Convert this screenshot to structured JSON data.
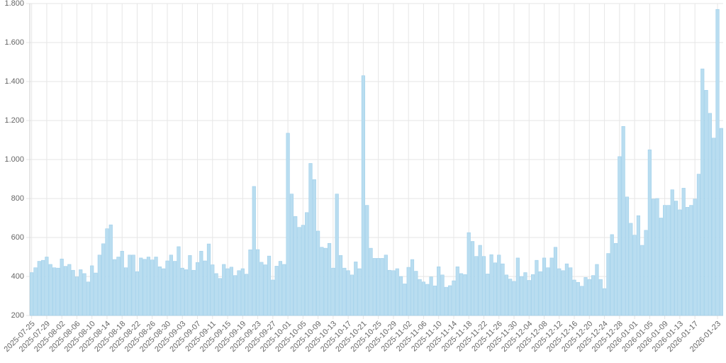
{
  "chart_data": {
    "type": "bar",
    "categories": [
      "2025-07-25",
      null,
      null,
      null,
      "2025-07-29",
      null,
      null,
      null,
      "2025-08-02",
      null,
      null,
      null,
      "2025-08-06",
      null,
      null,
      null,
      "2025-08-10",
      null,
      null,
      null,
      "2025-08-14",
      null,
      null,
      null,
      "2025-08-18",
      null,
      null,
      null,
      "2025-08-22",
      null,
      null,
      null,
      "2025-08-26",
      null,
      null,
      null,
      "2025-08-30",
      null,
      null,
      null,
      "2025-09-03",
      null,
      null,
      null,
      "2025-09-07",
      null,
      null,
      null,
      "2025-09-11",
      null,
      null,
      null,
      "2025-09-15",
      null,
      null,
      null,
      "2025-09-19",
      null,
      null,
      null,
      "2025-09-23",
      null,
      null,
      null,
      "2025-09-27",
      null,
      null,
      null,
      "2025-10-01",
      null,
      null,
      null,
      "2025-10-05",
      null,
      null,
      null,
      "2025-10-09",
      null,
      null,
      null,
      "2025-10-13",
      null,
      null,
      null,
      "2025-10-17",
      null,
      null,
      null,
      "2025-10-21",
      null,
      null,
      null,
      "2025-10-25",
      null,
      null,
      null,
      "2025-10-29",
      null,
      null,
      null,
      "2025-11-02",
      null,
      null,
      null,
      "2025-11-06",
      null,
      null,
      null,
      "2025-11-10",
      null,
      null,
      null,
      "2025-11-14",
      null,
      null,
      null,
      "2025-11-18",
      null,
      null,
      null,
      "2025-11-22",
      null,
      null,
      null,
      "2025-11-26",
      null,
      null,
      null,
      "2025-11-30",
      null,
      null,
      null,
      "2025-12-04",
      null,
      null,
      null,
      "2025-12-08",
      null,
      null,
      null,
      "2025-12-12",
      null,
      null,
      null,
      "2025-12-16",
      null,
      null,
      null,
      "2025-12-20",
      null,
      null,
      null,
      "2025-12-24",
      null,
      null,
      null,
      "2025-12-28",
      null,
      null,
      null,
      "2026-01-01",
      null,
      null,
      null,
      "2026-01-05",
      null,
      null,
      null,
      "2026-01-09",
      null,
      null,
      null,
      "2026-01-13",
      null,
      null,
      null,
      "2026-01-17",
      null,
      null,
      null,
      null,
      null,
      "2026-01-23",
      null
    ],
    "values": [
      420,
      445,
      478,
      483,
      500,
      462,
      445,
      443,
      490,
      452,
      462,
      432,
      398,
      435,
      415,
      372,
      455,
      418,
      510,
      568,
      645,
      665,
      487,
      500,
      530,
      445,
      510,
      510,
      425,
      495,
      488,
      500,
      485,
      500,
      450,
      440,
      480,
      510,
      478,
      553,
      443,
      435,
      508,
      432,
      472,
      530,
      480,
      567,
      460,
      415,
      390,
      462,
      440,
      448,
      405,
      430,
      440,
      412,
      537,
      862,
      538,
      473,
      460,
      505,
      382,
      453,
      478,
      462,
      1135,
      823,
      708,
      652,
      663,
      728,
      980,
      897,
      633,
      550,
      545,
      570,
      443,
      823,
      508,
      443,
      430,
      408,
      475,
      440,
      1430,
      765,
      545,
      493,
      493,
      493,
      510,
      432,
      430,
      440,
      400,
      362,
      447,
      487,
      427,
      385,
      372,
      360,
      398,
      352,
      450,
      408,
      345,
      353,
      378,
      450,
      415,
      410,
      625,
      580,
      503,
      560,
      503,
      413,
      512,
      470,
      510,
      465,
      408,
      387,
      375,
      495,
      400,
      420,
      380,
      410,
      483,
      425,
      495,
      445,
      495,
      550,
      440,
      430,
      465,
      445,
      382,
      370,
      350,
      395,
      385,
      405,
      462,
      385,
      338,
      518,
      615,
      570,
      1015,
      1170,
      808,
      673,
      612,
      712,
      560,
      637,
      1050,
      797,
      800,
      700,
      765,
      765,
      845,
      787,
      742,
      853,
      755,
      765,
      797,
      925,
      1465,
      1355,
      1237,
      1110,
      1770,
      1160
    ],
    "color": "#b9ddf0",
    "ylim": [
      200,
      1800
    ],
    "yticks": [
      200,
      400,
      600,
      800,
      {
        "value": 1000,
        "label": "1.000"
      },
      {
        "value": 1200,
        "label": "1.200"
      },
      {
        "value": 1400,
        "label": "1.400"
      },
      {
        "value": 1600,
        "label": "1.600"
      },
      {
        "value": 1800,
        "label": "1.800"
      }
    ],
    "grid": true
  }
}
